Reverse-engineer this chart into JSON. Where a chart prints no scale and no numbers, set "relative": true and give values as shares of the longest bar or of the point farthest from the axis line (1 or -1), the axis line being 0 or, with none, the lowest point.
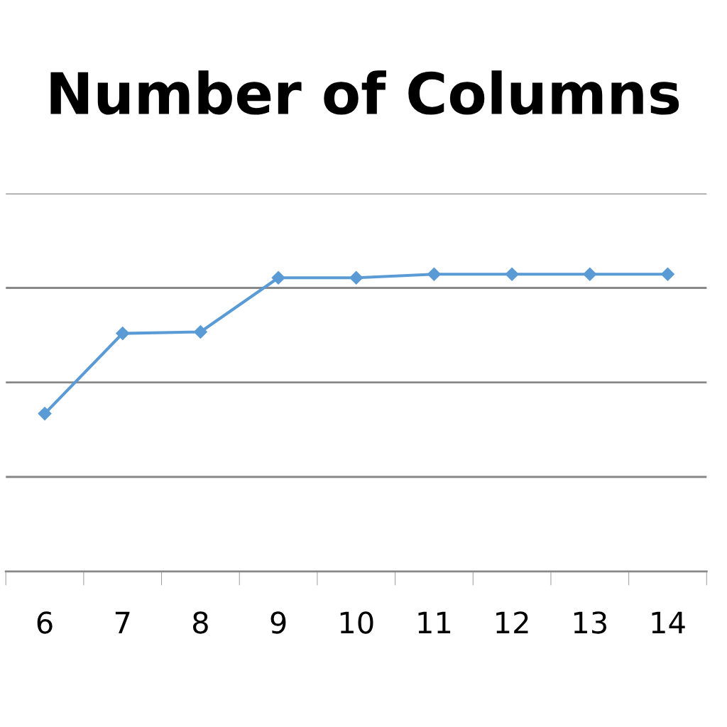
{
  "chart_data": {
    "type": "line",
    "title": "Number of Columns",
    "relative": true,
    "categories": [
      "6",
      "7",
      "8",
      "9",
      "10",
      "11",
      "12",
      "13",
      "14"
    ],
    "series": [
      {
        "color": "#5b9bd5",
        "values": [
          0.531,
          0.801,
          0.806,
          0.988,
          0.988,
          1,
          1,
          1,
          1
        ]
      }
    ],
    "marker": "diamond",
    "grid": "y",
    "legend": false
  }
}
